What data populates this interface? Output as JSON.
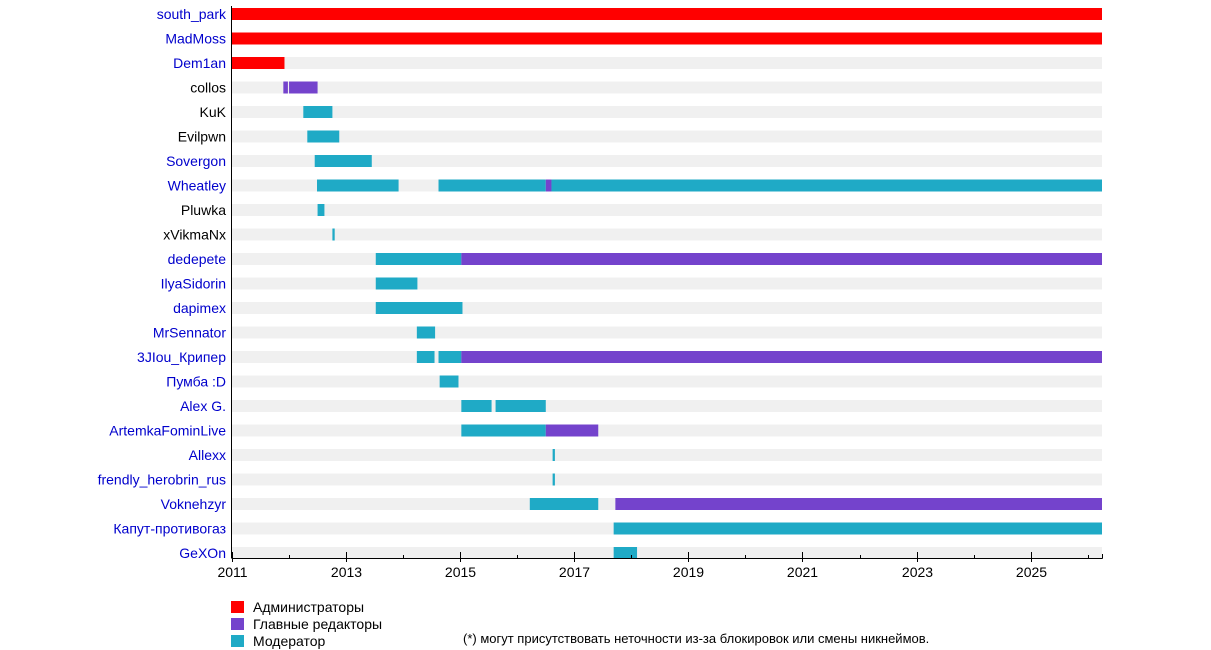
{
  "chart_data": {
    "type": "timeline",
    "xlim": [
      2011,
      2026.25
    ],
    "x_ticks": [
      2011,
      2013,
      2015,
      2017,
      2019,
      2021,
      2023,
      2025
    ],
    "colors": {
      "admin": "#ff0000",
      "chief": "#7443cc",
      "moderator": "#1faac6",
      "track": "#f0f0f0",
      "link": "#0000cc",
      "plain": "#000000"
    },
    "legend": [
      {
        "role": "admin",
        "label": "Администраторы"
      },
      {
        "role": "chief",
        "label": "Главные редакторы"
      },
      {
        "role": "moderator",
        "label": "Модератор"
      }
    ],
    "users": [
      {
        "name": "south_park",
        "link": true,
        "periods": [
          {
            "role": "admin",
            "start": 2011.0,
            "end": 2026.25
          }
        ]
      },
      {
        "name": "MadMoss",
        "link": true,
        "periods": [
          {
            "role": "admin",
            "start": 2011.0,
            "end": 2026.25
          }
        ]
      },
      {
        "name": "Dem1an",
        "link": true,
        "periods": [
          {
            "role": "admin",
            "start": 2011.0,
            "end": 2011.92
          }
        ]
      },
      {
        "name": "collos",
        "link": false,
        "periods": [
          {
            "role": "chief",
            "start": 2011.9,
            "end": 2011.98
          },
          {
            "role": "chief",
            "start": 2012.0,
            "end": 2012.5
          }
        ]
      },
      {
        "name": "KuK",
        "link": false,
        "periods": [
          {
            "role": "moderator",
            "start": 2012.25,
            "end": 2012.76
          }
        ]
      },
      {
        "name": "Evilpwn",
        "link": false,
        "periods": [
          {
            "role": "moderator",
            "start": 2012.32,
            "end": 2012.88
          }
        ]
      },
      {
        "name": "Sovergon",
        "link": true,
        "periods": [
          {
            "role": "moderator",
            "start": 2012.45,
            "end": 2013.45
          }
        ]
      },
      {
        "name": "Wheatley",
        "link": true,
        "periods": [
          {
            "role": "moderator",
            "start": 2012.49,
            "end": 2013.92
          },
          {
            "role": "moderator",
            "start": 2014.62,
            "end": 2016.5
          },
          {
            "role": "chief",
            "start": 2016.5,
            "end": 2016.6
          },
          {
            "role": "moderator",
            "start": 2016.6,
            "end": 2026.25
          }
        ]
      },
      {
        "name": "Pluwka",
        "link": false,
        "periods": [
          {
            "role": "moderator",
            "start": 2012.5,
            "end": 2012.62
          }
        ]
      },
      {
        "name": "xVikmaNx",
        "link": false,
        "periods": [
          {
            "role": "moderator",
            "start": 2012.76,
            "end": 2012.8
          }
        ]
      },
      {
        "name": "dedepete",
        "link": true,
        "periods": [
          {
            "role": "moderator",
            "start": 2013.52,
            "end": 2015.02
          },
          {
            "role": "chief",
            "start": 2015.02,
            "end": 2026.25
          }
        ]
      },
      {
        "name": "IlyaSidorin",
        "link": true,
        "periods": [
          {
            "role": "moderator",
            "start": 2013.52,
            "end": 2014.25
          }
        ]
      },
      {
        "name": "dapimex",
        "link": true,
        "periods": [
          {
            "role": "moderator",
            "start": 2013.52,
            "end": 2015.04
          }
        ]
      },
      {
        "name": "MrSennator",
        "link": true,
        "periods": [
          {
            "role": "moderator",
            "start": 2014.24,
            "end": 2014.56
          }
        ]
      },
      {
        "name": "3JIou_Крипер",
        "link": true,
        "periods": [
          {
            "role": "moderator",
            "start": 2014.24,
            "end": 2014.55
          },
          {
            "role": "moderator",
            "start": 2014.62,
            "end": 2015.02
          },
          {
            "role": "chief",
            "start": 2015.02,
            "end": 2026.25
          }
        ]
      },
      {
        "name": "Пумба :D",
        "link": true,
        "periods": [
          {
            "role": "moderator",
            "start": 2014.64,
            "end": 2014.97
          }
        ]
      },
      {
        "name": "Alex G.",
        "link": true,
        "periods": [
          {
            "role": "moderator",
            "start": 2015.02,
            "end": 2015.55
          },
          {
            "role": "moderator",
            "start": 2015.62,
            "end": 2016.5
          }
        ]
      },
      {
        "name": "ArtemkaFominLive",
        "link": true,
        "periods": [
          {
            "role": "moderator",
            "start": 2015.02,
            "end": 2016.5
          },
          {
            "role": "chief",
            "start": 2016.5,
            "end": 2017.42
          }
        ]
      },
      {
        "name": "Allexx",
        "link": true,
        "periods": [
          {
            "role": "moderator",
            "start": 2016.62,
            "end": 2016.66
          }
        ]
      },
      {
        "name": "frendly_herobrin_rus",
        "link": true,
        "periods": [
          {
            "role": "moderator",
            "start": 2016.62,
            "end": 2016.66
          }
        ]
      },
      {
        "name": "Voknehzyr",
        "link": true,
        "periods": [
          {
            "role": "moderator",
            "start": 2016.22,
            "end": 2017.42
          },
          {
            "role": "chief",
            "start": 2017.72,
            "end": 2026.25
          }
        ]
      },
      {
        "name": "Капут-противогаз",
        "link": true,
        "periods": [
          {
            "role": "moderator",
            "start": 2017.69,
            "end": 2026.25
          }
        ]
      },
      {
        "name": "GeXOn",
        "link": true,
        "periods": [
          {
            "role": "moderator",
            "start": 2017.69,
            "end": 2018.1
          }
        ]
      }
    ],
    "footnote": "(*) могут присутствовать неточности из-за блокировок или смены никнеймов."
  }
}
